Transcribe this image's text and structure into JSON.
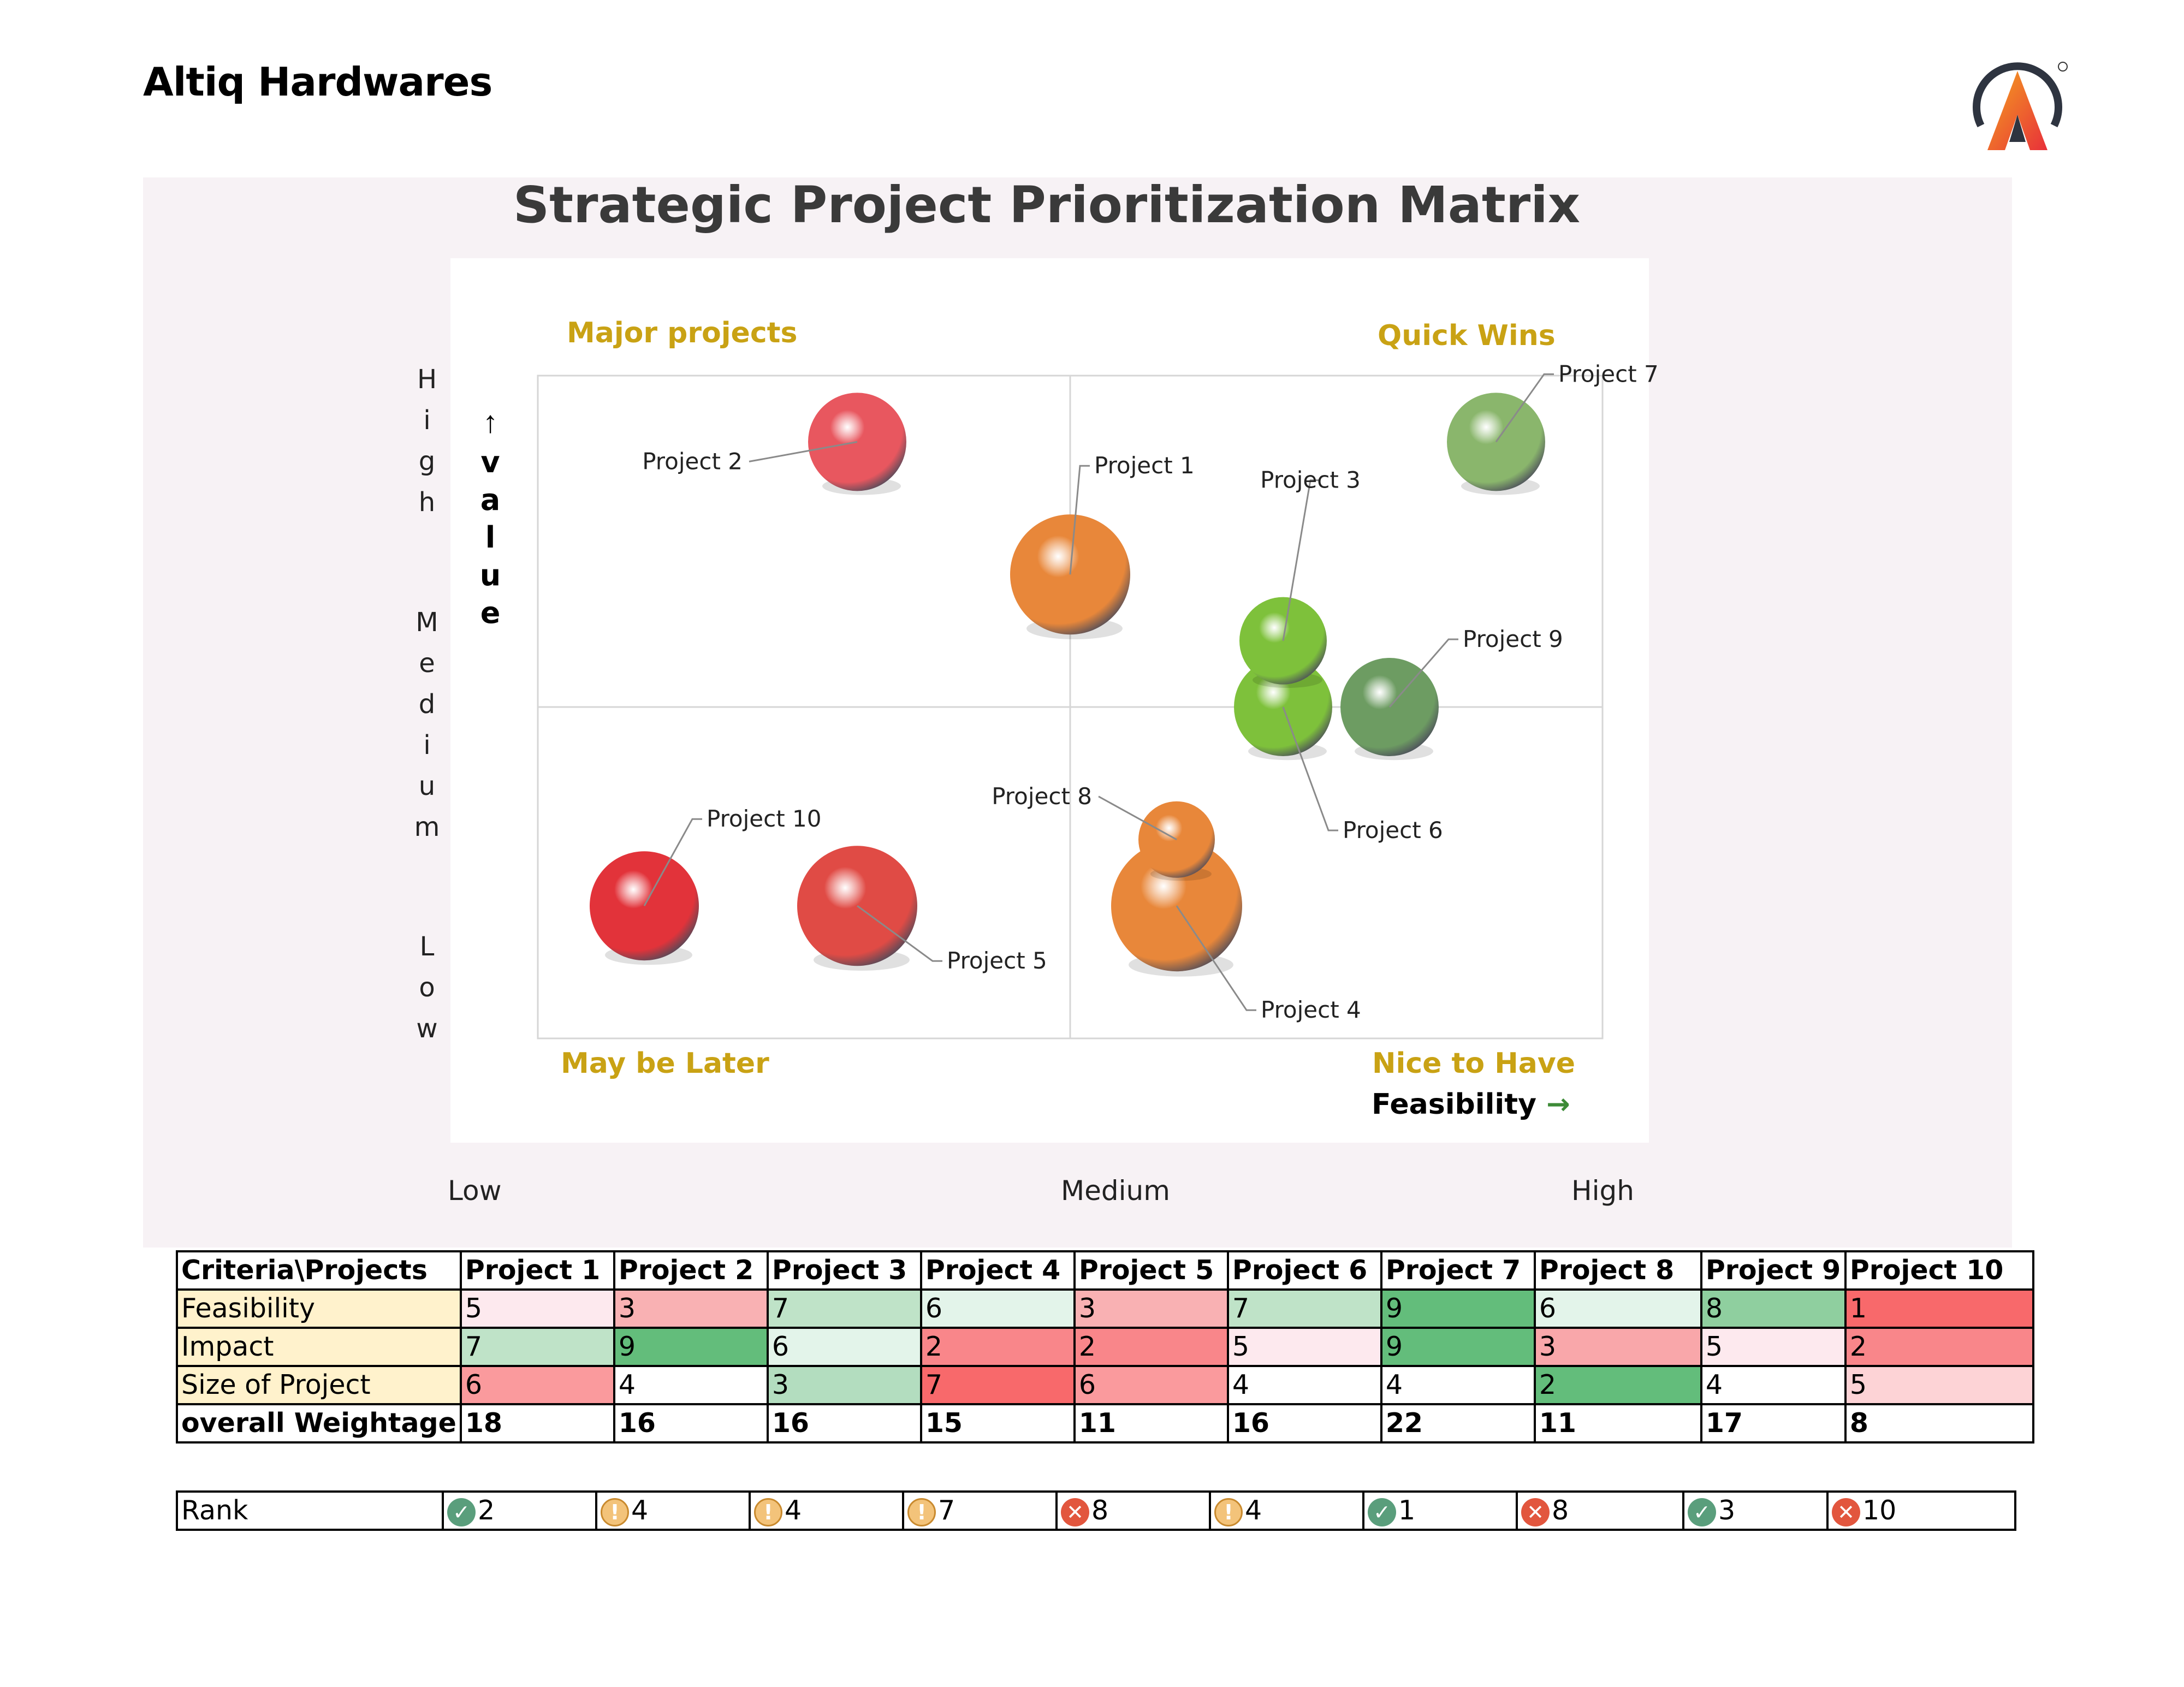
{
  "header": {
    "brand": "Altiq Hardwares"
  },
  "chart_data": {
    "type": "bubble",
    "title": "Strategic Project Prioritization Matrix",
    "xlabel": "Feasibility",
    "ylabel": "value",
    "x_tick_labels": [
      "Low",
      "Medium",
      "High"
    ],
    "y_tick_labels": [
      "High",
      "Medium",
      "Low"
    ],
    "quadrants": {
      "top_left": "Major projects",
      "top_right": "Quick Wins",
      "bottom_left": "May be Later",
      "bottom_right": "Nice to Have"
    },
    "xlim": [
      0,
      10
    ],
    "ylim": [
      0,
      10
    ],
    "points": [
      {
        "label": "Project 1",
        "x": 5,
        "y": 7,
        "size": 6,
        "color": "#e8873a"
      },
      {
        "label": "Project 2",
        "x": 3,
        "y": 9,
        "size": 4,
        "color": "#e8575f"
      },
      {
        "label": "Project 3",
        "x": 7,
        "y": 6,
        "size": 3,
        "color": "#7ec13b"
      },
      {
        "label": "Project 4",
        "x": 6,
        "y": 2,
        "size": 7,
        "color": "#e8873a"
      },
      {
        "label": "Project 5",
        "x": 3,
        "y": 2,
        "size": 6,
        "color": "#e04b45"
      },
      {
        "label": "Project 6",
        "x": 7,
        "y": 5,
        "size": 4,
        "color": "#7ec13b"
      },
      {
        "label": "Project 7",
        "x": 9,
        "y": 9,
        "size": 4,
        "color": "#8ab66c"
      },
      {
        "label": "Project 8",
        "x": 6,
        "y": 3,
        "size": 2,
        "color": "#e8873a"
      },
      {
        "label": "Project 9",
        "x": 8,
        "y": 5,
        "size": 4,
        "color": "#6d9c62"
      },
      {
        "label": "Project 10",
        "x": 1,
        "y": 2,
        "size": 5,
        "color": "#e2333a"
      }
    ]
  },
  "scores_table": {
    "corner": "Criteria\\Projects",
    "projects": [
      "Project 1",
      "Project 2",
      "Project 3",
      "Project 4",
      "Project 5",
      "Project 6",
      "Project 7",
      "Project 8",
      "Project 9",
      "Project 10"
    ],
    "rows": [
      {
        "label": "Feasibility",
        "values": [
          "5",
          "3",
          "7",
          "6",
          "3",
          "7",
          "9",
          "6",
          "8",
          "1"
        ],
        "colors": [
          "#fde9ee",
          "#f9b1b3",
          "#bfe3c8",
          "#e3f4ea",
          "#f9b1b3",
          "#bfe3c8",
          "#63bd7b",
          "#e3f4ea",
          "#8fcf9f",
          "#f8696b"
        ]
      },
      {
        "label": "Impact",
        "values": [
          "7",
          "9",
          "6",
          "2",
          "2",
          "5",
          "9",
          "3",
          "5",
          "2"
        ],
        "colors": [
          "#bfe3c8",
          "#63bd7b",
          "#e3f4ea",
          "#f9868a",
          "#f9868a",
          "#fde9ee",
          "#63bd7b",
          "#f9a7aa",
          "#fde9ee",
          "#f9868a"
        ]
      },
      {
        "label": "Size of Project",
        "values": [
          "6",
          "4",
          "3",
          "7",
          "6",
          "4",
          "4",
          "2",
          "4",
          "5"
        ],
        "colors": [
          "#fa9a9d",
          "#ffffff",
          "#b3ddbf",
          "#f8696b",
          "#fa9a9d",
          "#ffffff",
          "#ffffff",
          "#63bd7b",
          "#ffffff",
          "#fdd3d6"
        ]
      },
      {
        "label": "overall Weightage",
        "values": [
          "18",
          "16",
          "16",
          "15",
          "11",
          "16",
          "22",
          "11",
          "17",
          "8"
        ]
      }
    ]
  },
  "rank_table": {
    "label": "Rank",
    "values": [
      "2",
      "4",
      "4",
      "7",
      "8",
      "4",
      "1",
      "8",
      "3",
      "10"
    ],
    "icons": [
      "check-icon",
      "warning-icon",
      "warning-icon",
      "warning-icon",
      "cross-icon",
      "warning-icon",
      "check-icon",
      "cross-icon",
      "check-icon",
      "cross-icon"
    ]
  }
}
